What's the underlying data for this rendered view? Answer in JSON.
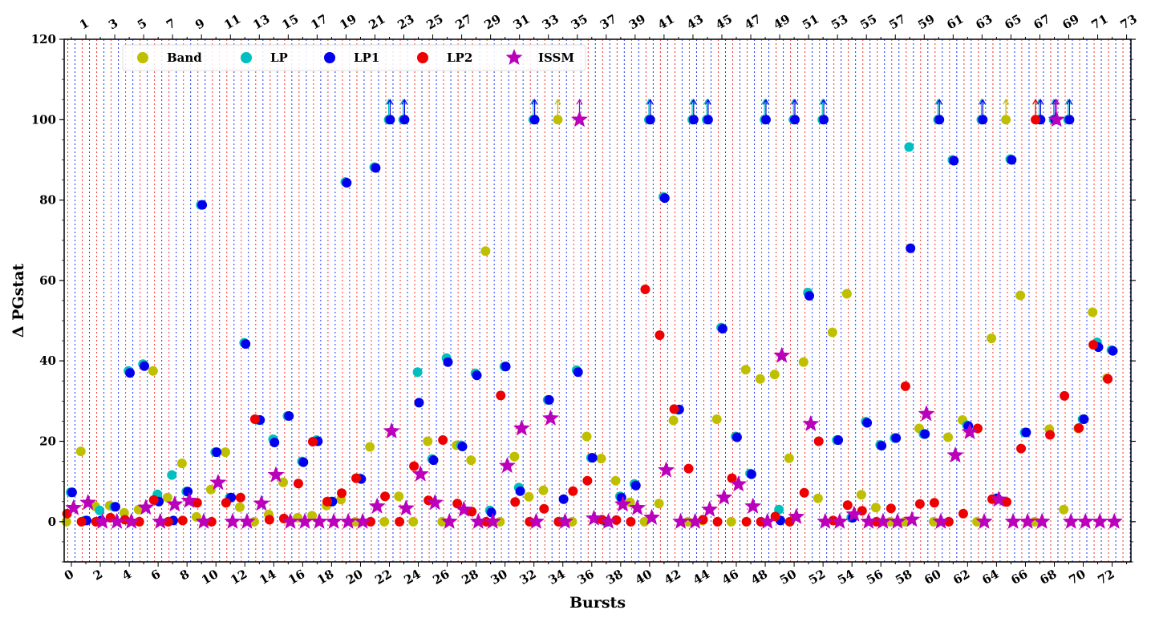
{
  "chart_data": {
    "type": "scatter",
    "xlabel": "Bursts",
    "ylabel": "Δ PGstat",
    "ylim": [
      -10,
      120
    ],
    "yticks": [
      0,
      20,
      40,
      60,
      80,
      100,
      120
    ],
    "xlim": [
      -0.5,
      73.3
    ],
    "bottom_tick_labels": [
      "0",
      "2",
      "4",
      "6",
      "8",
      "10",
      "12",
      "14",
      "16",
      "18",
      "20",
      "22",
      "24",
      "26",
      "28",
      "30",
      "32",
      "34",
      "36",
      "38",
      "40",
      "42",
      "44",
      "46",
      "48",
      "50",
      "52",
      "54",
      "56",
      "58",
      "60",
      "62",
      "64",
      "66",
      "68",
      "70",
      "72"
    ],
    "top_tick_labels": [
      "1",
      "3",
      "5",
      "7",
      "9",
      "11",
      "13",
      "15",
      "17",
      "19",
      "21",
      "23",
      "25",
      "27",
      "29",
      "31",
      "33",
      "35",
      "37",
      "39",
      "41",
      "43",
      "45",
      "47",
      "49",
      "51",
      "53",
      "55",
      "57",
      "59",
      "61",
      "63",
      "65",
      "67",
      "69",
      "71",
      "73"
    ],
    "grid": "dotted vertical lines at each burst position (blue and red)",
    "legend_position": "top-left",
    "series": [
      {
        "name": "Band",
        "color": "#bfbf00",
        "marker": "circle",
        "offset": -0.35,
        "values": [
          0,
          17.5,
          3.8,
          4,
          2.2,
          3,
          37.5,
          6,
          14.5,
          1.2,
          8,
          17.3,
          3.6,
          0,
          1.8,
          9.8,
          1,
          1.5,
          4,
          5.5,
          0,
          18.6,
          0,
          6.3,
          0,
          20,
          0,
          19,
          15.3,
          67.3,
          0,
          16.2,
          6.2,
          7.8,
          100,
          0,
          21.2,
          15.7,
          10.2,
          4.8,
          0,
          4.5,
          25.2,
          0,
          0.3,
          25.5,
          0,
          37.8,
          35.5,
          36.6,
          15.8,
          39.7,
          5.8,
          47.1,
          56.7,
          6.7,
          3.5,
          0,
          0,
          23.2,
          0,
          21,
          25.3,
          0,
          45.6,
          100,
          56.3,
          0,
          23,
          3,
          23.2,
          52.1,
          35.7
        ]
      },
      {
        "name": "LP",
        "color": "#00bfbf",
        "marker": "circle",
        "offset": -0.05,
        "values": [
          7.3,
          0.3,
          2.8,
          3.7,
          37.5,
          39.2,
          6.8,
          11.6,
          7.5,
          78.8,
          17.3,
          6,
          44.5,
          25.3,
          20.5,
          26.3,
          15,
          20.3,
          5,
          84.5,
          10.8,
          88.2,
          100,
          100,
          37.2,
          15.6,
          40.7,
          19,
          36.9,
          2.8,
          38.6,
          8.5,
          100,
          30.3,
          0,
          37.7,
          15.9,
          0,
          6.3,
          9.4,
          100,
          80.8,
          27.8,
          100,
          100,
          48.3,
          21.2,
          12,
          100,
          3,
          100,
          57,
          100,
          20.3,
          1,
          24.9,
          19.1,
          20.8,
          93.2,
          21.8,
          100,
          90,
          24,
          100,
          5.8,
          90.2,
          22.2,
          100,
          100,
          100,
          25.5,
          44.6,
          42.7
        ]
      },
      {
        "name": "LP1",
        "color": "#0000ee",
        "marker": "circle",
        "offset": 0.05,
        "values": [
          7.3,
          0.3,
          0.3,
          3.7,
          37,
          38.7,
          5,
          0.3,
          7.5,
          78.8,
          17.3,
          6,
          44.2,
          25.3,
          19.7,
          26.3,
          14.8,
          20,
          5,
          84.3,
          10.6,
          88,
          100,
          100,
          29.6,
          15.3,
          39.7,
          18.7,
          36.4,
          2.3,
          38.6,
          7.6,
          100,
          30.3,
          5.6,
          37.2,
          15.9,
          0,
          6,
          9,
          100,
          80.5,
          27.9,
          100,
          100,
          48,
          21,
          11.8,
          100,
          0.3,
          100,
          56.2,
          100,
          20.3,
          1,
          24.6,
          18.9,
          20.8,
          68,
          21.8,
          100,
          89.8,
          23.8,
          100,
          5.8,
          90,
          22.2,
          100,
          100,
          100,
          25.5,
          43.4,
          42.5
        ]
      },
      {
        "name": "LP2",
        "color": "#ee0000",
        "marker": "circle",
        "offset": -0.3,
        "values": [
          2,
          0,
          0,
          1,
          0.5,
          0,
          5.4,
          0,
          0.3,
          4.7,
          0,
          4.7,
          6,
          25.5,
          0.5,
          0.8,
          9.5,
          19.9,
          5,
          7.1,
          10.8,
          0,
          6.3,
          0,
          13.8,
          5.3,
          20.3,
          4.5,
          2.5,
          0,
          31.4,
          4.9,
          0,
          3.2,
          0,
          7.6,
          10.2,
          0.5,
          0.4,
          0,
          57.8,
          46.4,
          28,
          13.2,
          0.5,
          0,
          10.8,
          0,
          0,
          1.3,
          0,
          7.2,
          20,
          0.3,
          4.1,
          2.7,
          0,
          3.3,
          33.7,
          4.4,
          4.7,
          0,
          2,
          23.2,
          5.6,
          4.9,
          18.2,
          100,
          21.6,
          31.3,
          23.3,
          44,
          35.5
        ]
      },
      {
        "name": "ISSM",
        "color": "#bb00bb",
        "marker": "star",
        "offset": 0.15,
        "values": [
          3.4,
          4.7,
          0,
          0,
          0,
          3.5,
          0,
          4.3,
          5.2,
          0,
          9.7,
          0,
          0,
          4.5,
          11.6,
          0,
          0,
          0,
          0,
          0,
          0,
          3.8,
          22.5,
          3.3,
          11.8,
          4.7,
          0,
          3,
          0,
          0,
          13.9,
          23.2,
          0,
          25.7,
          0,
          100,
          0.8,
          0,
          4.3,
          3.4,
          1,
          12.8,
          0,
          0,
          3,
          6,
          9.3,
          3.8,
          0,
          41.3,
          1.2,
          24.3,
          0,
          0,
          1.8,
          0,
          0,
          0,
          0.5,
          26.8,
          0,
          16.5,
          22.3,
          0,
          5.5,
          0,
          0,
          0,
          100,
          0,
          0,
          0,
          0
        ]
      }
    ]
  },
  "legend": {
    "items": [
      {
        "label": "Band",
        "color": "#bfbf00",
        "marker": "circle"
      },
      {
        "label": "LP",
        "color": "#00bfbf",
        "marker": "circle"
      },
      {
        "label": "LP1",
        "color": "#0000ee",
        "marker": "circle"
      },
      {
        "label": "LP2",
        "color": "#ee0000",
        "marker": "circle"
      },
      {
        "label": "ISSM",
        "color": "#bb00bb",
        "marker": "star"
      }
    ]
  }
}
